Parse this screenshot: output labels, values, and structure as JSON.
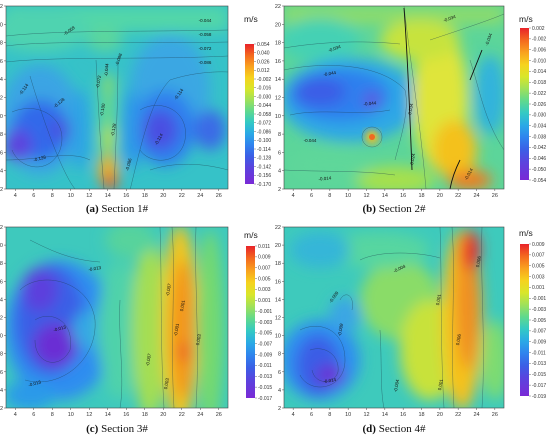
{
  "unit": "m/s",
  "x_ticks": [
    "4",
    "6",
    "8",
    "10",
    "12",
    "14",
    "16",
    "18",
    "20",
    "22",
    "24",
    "26"
  ],
  "y_ticks": [
    "2",
    "4",
    "6",
    "8",
    "10",
    "12",
    "14",
    "16",
    "18",
    "20",
    "22"
  ],
  "panels": [
    {
      "caption_letter": "(a)",
      "caption_text": "Section 1#",
      "colorbar_ticks": [
        "0.054",
        "0.040",
        "0.026",
        "0.012",
        "-0.002",
        "-0.016",
        "-0.030",
        "-0.044",
        "-0.058",
        "-0.072",
        "-0.086",
        "-0.100",
        "-0.114",
        "-0.128",
        "-0.142",
        "-0.156",
        "-0.170"
      ],
      "contour_labels": [
        "-0.044",
        "-0.058",
        "-0.072",
        "-0.086",
        "-0.058",
        "-0.086",
        "-0.072",
        "-0.100",
        "-0.114",
        "-0.128",
        "-0.114",
        "-0.128",
        "-0.086",
        "-0.044",
        "-0.114",
        "-0.128"
      ]
    },
    {
      "caption_letter": "(b)",
      "caption_text": "Section 2#",
      "colorbar_ticks": [
        "0.002",
        "-0.002",
        "-0.006",
        "-0.010",
        "-0.014",
        "-0.018",
        "-0.022",
        "-0.026",
        "-0.030",
        "-0.034",
        "-0.038",
        "-0.042",
        "-0.046",
        "-0.050",
        "-0.054"
      ],
      "contour_labels": [
        "-0.034",
        "-0.034",
        "-0.034",
        "-0.044",
        "-0.044",
        "-0.044",
        "-0.034",
        "-0.024",
        "-0.014",
        "-0.014"
      ]
    },
    {
      "caption_letter": "(c)",
      "caption_text": "Section 3#",
      "colorbar_ticks": [
        "0.011",
        "0.009",
        "0.007",
        "0.005",
        "0.003",
        "0.001",
        "-0.001",
        "-0.003",
        "-0.005",
        "-0.007",
        "-0.009",
        "-0.011",
        "-0.013",
        "-0.015",
        "-0.017"
      ],
      "contour_labels": [
        "-0.013",
        "-0.013",
        "-0.007",
        "-0.007",
        "-0.001",
        "0.001",
        "0.003",
        "0.003",
        "-0.013"
      ]
    },
    {
      "caption_letter": "(d)",
      "caption_text": "Section 4#",
      "colorbar_ticks": [
        "0.009",
        "0.007",
        "0.005",
        "0.003",
        "0.001",
        "-0.001",
        "-0.003",
        "-0.005",
        "-0.007",
        "-0.009",
        "-0.011",
        "-0.013",
        "-0.015",
        "-0.017",
        "-0.019"
      ],
      "contour_labels": [
        "-0.009",
        "-0.004",
        "-0.004",
        "-0.009",
        "-0.014",
        "0.001",
        "0.001",
        "0.006",
        "0.006"
      ]
    }
  ],
  "chart_data": [
    {
      "type": "heatmap",
      "title": "Section 1#",
      "unit": "m/s",
      "x_range": [
        3,
        27
      ],
      "y_range": [
        2,
        22
      ],
      "colorbar_range": [
        -0.17,
        0.054
      ],
      "notes_visible": "strong negative (blue/purple) zones near x≈6 and x≈16–18 at y≈6–10; positive (orange/red) core near x≈12, y≈2–4"
    },
    {
      "type": "heatmap",
      "title": "Section 2#",
      "unit": "m/s",
      "x_range": [
        3,
        27
      ],
      "y_range": [
        2,
        22
      ],
      "colorbar_range": [
        -0.054,
        0.002
      ],
      "notes_visible": "blue band y≈8–15 for x<16; yellow/orange zone x≈16–22; orange spot near (12,8)"
    },
    {
      "type": "heatmap",
      "title": "Section 3#",
      "unit": "m/s",
      "x_range": [
        3,
        27
      ],
      "y_range": [
        2,
        22
      ],
      "colorbar_range": [
        -0.017,
        0.011
      ],
      "notes_visible": "purple/blue zone x≈4–10, y≈6–16; orange vertical band x≈20–22"
    },
    {
      "type": "heatmap",
      "title": "Section 4#",
      "unit": "m/s",
      "x_range": [
        3,
        27
      ],
      "y_range": [
        2,
        22
      ],
      "colorbar_range": [
        -0.019,
        0.009
      ],
      "notes_visible": "blue/purple zone x≈4–10, y≈4–10; red/orange vertical band x≈20–24"
    }
  ]
}
